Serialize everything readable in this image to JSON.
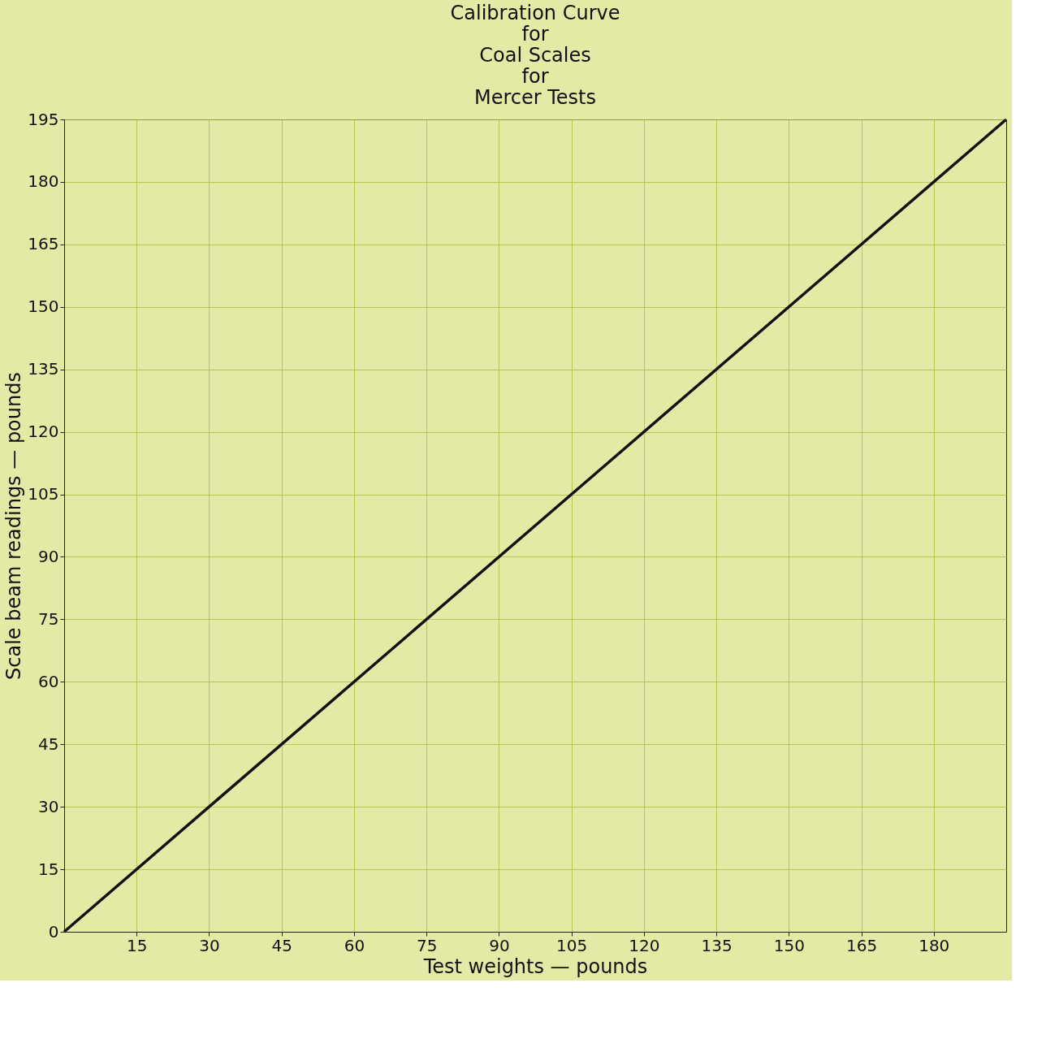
{
  "chart_data": {
    "type": "line",
    "title": "Calibration Curve\nfor\nCoal Scales\nfor\nMercer Tests",
    "xlabel": "Test weights — pounds",
    "ylabel": "Scale beam readings — pounds",
    "x": [
      0,
      195
    ],
    "series": [
      {
        "color": "#111111",
        "values": [
          0,
          195
        ]
      }
    ],
    "xlim": [
      0,
      195
    ],
    "ylim": [
      0,
      195
    ],
    "xticks": [
      15,
      30,
      45,
      60,
      75,
      90,
      105,
      120,
      135,
      150,
      165,
      180
    ],
    "yticks": [
      0,
      15,
      30,
      45,
      60,
      75,
      90,
      105,
      120,
      135,
      150,
      165,
      180,
      195
    ],
    "grid": true,
    "marker": "none",
    "line_style": "solid"
  }
}
